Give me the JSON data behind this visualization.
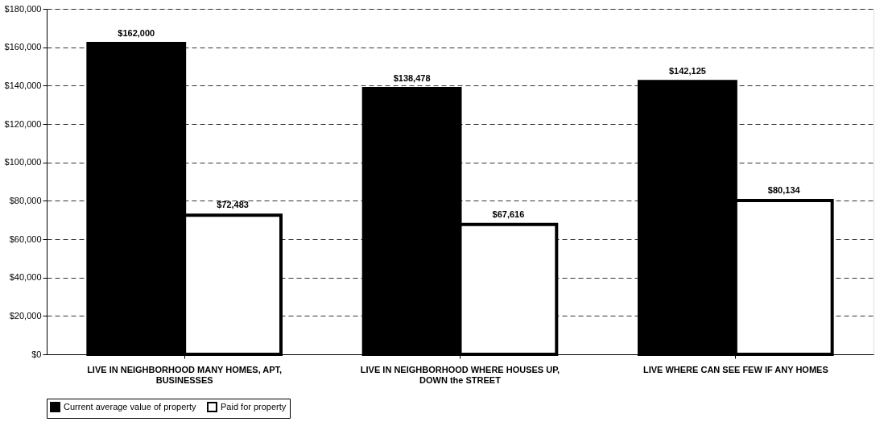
{
  "chart_data": {
    "type": "bar",
    "categories": [
      "LIVE IN NEIGHBORHOOD MANY HOMES, APT, BUSINESSES",
      "LIVE IN NEIGHBORHOOD WHERE HOUSES UP, DOWN the STREET",
      "LIVE WHERE CAN SEE FEW IF ANY HOMES"
    ],
    "series": [
      {
        "name": "Current average value of property",
        "color": "#000000",
        "values": [
          162000,
          138478,
          142125
        ],
        "value_labels": [
          "$162,000",
          "$138,478",
          "$142,125"
        ]
      },
      {
        "name": "Paid for property",
        "color": "#ffffff",
        "values": [
          72483,
          67616,
          80134
        ],
        "value_labels": [
          "$72,483",
          "$67,616",
          "$80,134"
        ]
      }
    ],
    "ylim": [
      0,
      180000
    ],
    "yticks": [
      {
        "value": 0,
        "label": "$0"
      },
      {
        "value": 20000,
        "label": "$20,000"
      },
      {
        "value": 40000,
        "label": "$40,000"
      },
      {
        "value": 60000,
        "label": "$60,000"
      },
      {
        "value": 80000,
        "label": "$80,000"
      },
      {
        "value": 100000,
        "label": "$100,000"
      },
      {
        "value": 120000,
        "label": "$120,000"
      },
      {
        "value": 140000,
        "label": "$140,000"
      },
      {
        "value": 160000,
        "label": "$160,000"
      },
      {
        "value": 180000,
        "label": "$180,000"
      }
    ],
    "grid": "y",
    "legend": "bottom"
  }
}
